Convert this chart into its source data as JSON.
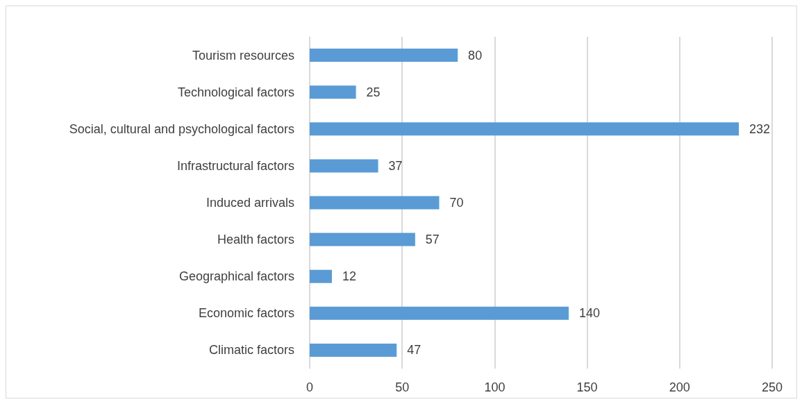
{
  "chart_data": {
    "type": "bar",
    "orientation": "horizontal",
    "categories": [
      "Tourism resources",
      "Technological factors",
      "Social, cultural and psychological factors",
      "Infrastructural factors",
      "Induced arrivals",
      "Health factors",
      "Geographical factors",
      "Economic factors",
      "Climatic factors"
    ],
    "values": [
      80,
      25,
      232,
      37,
      70,
      57,
      12,
      140,
      47
    ],
    "color": "#5b9bd5",
    "xlim": [
      0,
      250
    ],
    "xticks": [
      0,
      50,
      100,
      150,
      200,
      250
    ],
    "grid": "x",
    "data_labels": true
  }
}
